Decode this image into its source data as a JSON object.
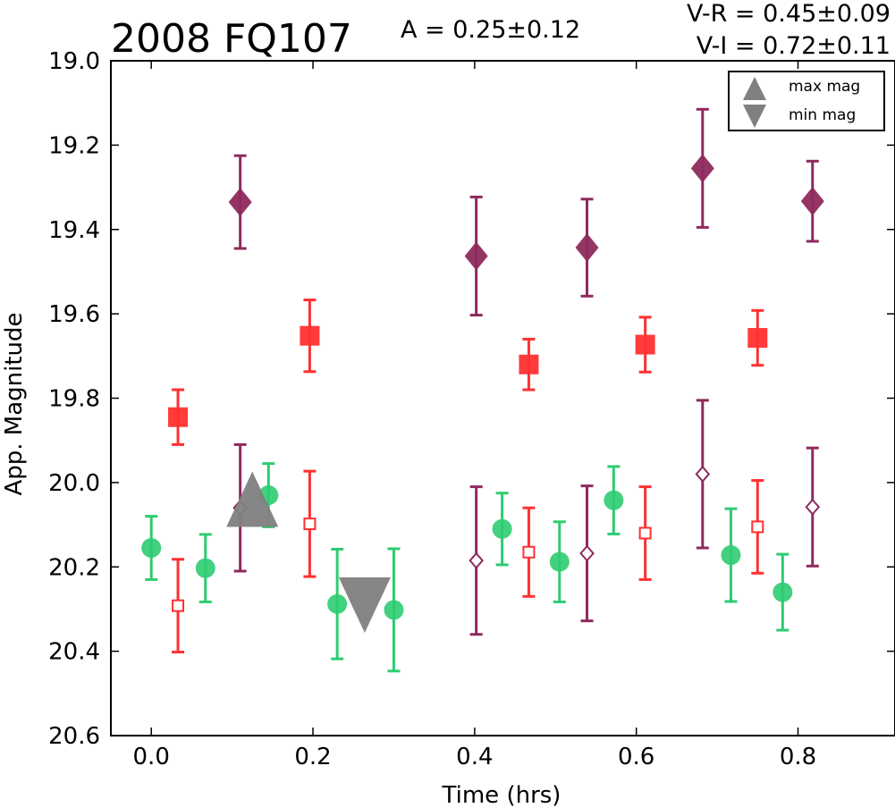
{
  "chart_data": {
    "type": "scatter",
    "title": "2008 FQ107",
    "annotations": {
      "amplitude": "A  = 0.25±0.12",
      "v_r": "V-R = 0.45±0.09",
      "v_i": "V-I  = 0.72±0.11"
    },
    "xlabel": "Time (hrs)",
    "ylabel": "App. Magnitude",
    "xlim": [
      -0.05,
      0.92
    ],
    "ylim": [
      20.6,
      19.0
    ],
    "y_inverted": true,
    "x_ticks": [
      0.0,
      0.2,
      0.4,
      0.6,
      0.8
    ],
    "x_tick_labels": [
      "0.0",
      "0.2",
      "0.4",
      "0.6",
      "0.8"
    ],
    "y_ticks": [
      19.0,
      19.2,
      19.4,
      19.6,
      19.8,
      20.0,
      20.2,
      20.4,
      20.6
    ],
    "y_tick_labels": [
      "19.0",
      "19.2",
      "19.4",
      "19.6",
      "19.8",
      "20.0",
      "20.2",
      "20.4",
      "20.6"
    ],
    "grid": false,
    "legend_position": "top-right",
    "legend": [
      {
        "label": "max mag",
        "marker": "triangle-up",
        "color": "#808080"
      },
      {
        "label": "min mag",
        "marker": "triangle-down",
        "color": "#808080"
      }
    ],
    "series": [
      {
        "marker": "circle",
        "filled": true,
        "color": "#2ecc71",
        "points": [
          {
            "x": 0.0,
            "y": 20.155,
            "err": 0.075
          },
          {
            "x": 0.067,
            "y": 20.203,
            "err": 0.08
          },
          {
            "x": 0.145,
            "y": 20.03,
            "err": 0.075
          },
          {
            "x": 0.23,
            "y": 20.288,
            "err": 0.13
          },
          {
            "x": 0.3,
            "y": 20.302,
            "err": 0.145
          },
          {
            "x": 0.434,
            "y": 20.11,
            "err": 0.085
          },
          {
            "x": 0.505,
            "y": 20.188,
            "err": 0.095
          },
          {
            "x": 0.572,
            "y": 20.042,
            "err": 0.08
          },
          {
            "x": 0.717,
            "y": 20.172,
            "err": 0.11
          },
          {
            "x": 0.781,
            "y": 20.26,
            "err": 0.09
          }
        ]
      },
      {
        "marker": "square",
        "filled": true,
        "color": "#ff3030",
        "points": [
          {
            "x": 0.033,
            "y": 19.845,
            "err": 0.065
          },
          {
            "x": 0.196,
            "y": 19.652,
            "err": 0.085
          },
          {
            "x": 0.467,
            "y": 19.72,
            "err": 0.06
          },
          {
            "x": 0.611,
            "y": 19.673,
            "err": 0.065
          },
          {
            "x": 0.75,
            "y": 19.657,
            "err": 0.065
          }
        ]
      },
      {
        "marker": "square",
        "filled": false,
        "color": "#ff3030",
        "points": [
          {
            "x": 0.033,
            "y": 20.292,
            "err": 0.11
          },
          {
            "x": 0.196,
            "y": 20.098,
            "err": 0.125
          },
          {
            "x": 0.467,
            "y": 20.165,
            "err": 0.105
          },
          {
            "x": 0.611,
            "y": 20.12,
            "err": 0.11
          },
          {
            "x": 0.75,
            "y": 20.105,
            "err": 0.11
          }
        ]
      },
      {
        "marker": "diamond",
        "filled": true,
        "color": "#8e2a5e",
        "points": [
          {
            "x": 0.11,
            "y": 19.335,
            "err": 0.11
          },
          {
            "x": 0.402,
            "y": 19.463,
            "err": 0.14
          },
          {
            "x": 0.539,
            "y": 19.443,
            "err": 0.115
          },
          {
            "x": 0.682,
            "y": 19.255,
            "err": 0.14
          },
          {
            "x": 0.818,
            "y": 19.333,
            "err": 0.095
          }
        ]
      },
      {
        "marker": "diamond",
        "filled": false,
        "color": "#8e2a5e",
        "points": [
          {
            "x": 0.11,
            "y": 20.06,
            "err": 0.15
          },
          {
            "x": 0.402,
            "y": 20.185,
            "err": 0.175
          },
          {
            "x": 0.539,
            "y": 20.168,
            "err": 0.16
          },
          {
            "x": 0.682,
            "y": 19.98,
            "err": 0.175
          },
          {
            "x": 0.818,
            "y": 20.058,
            "err": 0.14
          }
        ]
      }
    ],
    "extrema": [
      {
        "type": "max",
        "x": 0.125,
        "y": 20.05,
        "color": "#808080"
      },
      {
        "type": "min",
        "x": 0.264,
        "y": 20.28,
        "color": "#808080"
      }
    ]
  }
}
